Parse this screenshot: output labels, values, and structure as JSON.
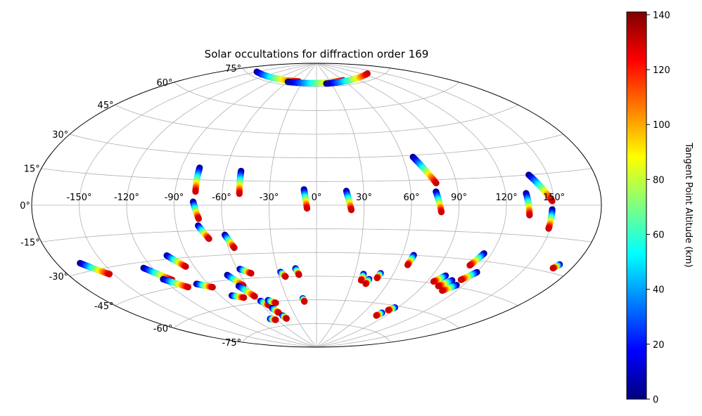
{
  "chart_data": {
    "type": "scatter",
    "projection": "aitoff",
    "title": "Solar occultations for diffraction order 169",
    "xlabel": "",
    "ylabel": "",
    "xlim": [
      -180,
      180
    ],
    "ylim": [
      -90,
      90
    ],
    "grid": true,
    "lon_ticks": [
      -150,
      -120,
      -90,
      -60,
      -30,
      0,
      30,
      60,
      90,
      120,
      150
    ],
    "lon_tick_labels": [
      "-150°",
      "-120°",
      "-90°",
      "-60°",
      "-30°",
      "0°",
      "30°",
      "60°",
      "90°",
      "120°",
      "150°"
    ],
    "lat_ticks": [
      -75,
      -60,
      -45,
      -30,
      -15,
      0,
      15,
      30,
      45,
      60,
      75
    ],
    "lat_tick_labels": [
      "-75°",
      "-60°",
      "-45°",
      "-30°",
      "-15°",
      "0°",
      "15°",
      "30°",
      "45°",
      "60°",
      "75°"
    ],
    "colorbar": {
      "label": "Tangent Point Altitude (km)",
      "colormap": "jet",
      "range": [
        0,
        141
      ],
      "ticks": [
        0,
        20,
        40,
        60,
        80,
        100,
        120,
        140
      ],
      "tick_labels": [
        "0",
        "20",
        "40",
        "60",
        "80",
        "100",
        "120",
        "140"
      ]
    },
    "colormap_stops": [
      "#00007f",
      "#0000ff",
      "#007fff",
      "#00ffff",
      "#7fff7f",
      "#ffff00",
      "#ff7f00",
      "#ff0000",
      "#7f0000"
    ],
    "occultation_tracks": [
      {
        "lon_start": -78,
        "lat_start": 22,
        "lon_end": -77,
        "lat_end": 8
      },
      {
        "lon_start": -78,
        "lat_start": 2,
        "lon_end": -75,
        "lat_end": -8
      },
      {
        "lon_start": -76,
        "lat_start": -12,
        "lon_end": -71,
        "lat_end": -20
      },
      {
        "lon_start": -50,
        "lat_start": 21,
        "lon_end": -49,
        "lat_end": 7
      },
      {
        "lon_start": -60,
        "lat_start": -18,
        "lon_end": -56,
        "lat_end": -26
      },
      {
        "lon_start": -8,
        "lat_start": 10,
        "lon_end": -6,
        "lat_end": -2
      },
      {
        "lon_start": 19,
        "lat_start": 9,
        "lon_end": 22,
        "lat_end": -3
      },
      {
        "lon_start": 67,
        "lat_start": 29,
        "lon_end": 77,
        "lat_end": 13
      },
      {
        "lon_start": 76,
        "lat_start": 8,
        "lon_end": 79,
        "lat_end": -4
      },
      {
        "lon_start": 133,
        "lat_start": 6,
        "lon_end": 135,
        "lat_end": -5
      },
      {
        "lon_start": 138,
        "lat_start": 15,
        "lon_end": 149,
        "lat_end": 2
      },
      {
        "lon_start": 149,
        "lat_start": -2,
        "lon_end": 149,
        "lat_end": -11
      },
      {
        "lon_start": -165,
        "lat_start": -26,
        "lon_end": -153,
        "lat_end": -33
      },
      {
        "lon_start": -126,
        "lat_start": -33,
        "lon_end": -114,
        "lat_end": -41
      },
      {
        "lon_start": -120,
        "lat_start": -40,
        "lon_end": -108,
        "lat_end": -46
      },
      {
        "lon_start": -104,
        "lat_start": -28,
        "lon_end": -96,
        "lat_end": -35
      },
      {
        "lon_start": -99,
        "lat_start": -45,
        "lon_end": -89,
        "lat_end": -48
      },
      {
        "lon_start": -70,
        "lat_start": -42,
        "lon_end": -63,
        "lat_end": -49
      },
      {
        "lon_start": -58,
        "lat_start": -39,
        "lon_end": -51,
        "lat_end": -42
      },
      {
        "lon_start": -80,
        "lat_start": -54,
        "lon_end": -71,
        "lat_end": -56
      },
      {
        "lon_start": -67,
        "lat_start": -49,
        "lon_end": -60,
        "lat_end": -56
      },
      {
        "lon_start": -58,
        "lat_start": -59,
        "lon_end": -53,
        "lat_end": -62
      },
      {
        "lon_start": -50,
        "lat_start": -59,
        "lon_end": -44,
        "lat_end": -61
      },
      {
        "lon_start": -52,
        "lat_start": -64,
        "lon_end": -49,
        "lat_end": -67
      },
      {
        "lon_start": -68,
        "lat_start": -70,
        "lon_end": -62,
        "lat_end": -71
      },
      {
        "lon_start": -47,
        "lat_start": -69,
        "lon_end": -45,
        "lat_end": -71
      },
      {
        "lon_start": -28,
        "lat_start": -42,
        "lon_end": -25,
        "lat_end": -45
      },
      {
        "lon_start": -16,
        "lat_start": -40,
        "lon_end": -14,
        "lat_end": -44
      },
      {
        "lon_start": -14,
        "lat_start": -59,
        "lon_end": -13,
        "lat_end": -61
      },
      {
        "lon_start": 37,
        "lat_start": -43,
        "lon_end": 37,
        "lat_end": -47
      },
      {
        "lon_start": 43,
        "lat_start": -46,
        "lon_end": 42,
        "lat_end": -49
      },
      {
        "lon_start": 50,
        "lat_start": -42,
        "lon_end": 49,
        "lat_end": -45
      },
      {
        "lon_start": 68,
        "lat_start": -30,
        "lon_end": 67,
        "lat_end": -36
      },
      {
        "lon_start": 81,
        "lat_start": -65,
        "lon_end": 79,
        "lat_end": -67
      },
      {
        "lon_start": 87,
        "lat_start": -61,
        "lon_end": 84,
        "lat_end": -63
      },
      {
        "lon_start": 100,
        "lat_start": -40,
        "lon_end": 95,
        "lat_end": -44
      },
      {
        "lon_start": 108,
        "lat_start": -42,
        "lon_end": 102,
        "lat_end": -46
      },
      {
        "lon_start": 115,
        "lat_start": -44,
        "lon_end": 109,
        "lat_end": -48
      },
      {
        "lon_start": 115,
        "lat_start": -26,
        "lon_end": 111,
        "lat_end": -33
      },
      {
        "lon_start": 120,
        "lat_start": -36,
        "lon_end": 114,
        "lat_end": -41
      },
      {
        "lon_start": 170,
        "lat_start": -26,
        "lon_end": 168,
        "lat_end": -28
      },
      {
        "lon_start": -150,
        "lat_start": 77,
        "lon_end": -40,
        "lat_end": 78
      },
      {
        "lon_start": -60,
        "lat_start": 77,
        "lon_end": 60,
        "lat_end": 78
      },
      {
        "lon_start": 20,
        "lat_start": 77,
        "lon_end": 130,
        "lat_end": 78
      }
    ]
  }
}
